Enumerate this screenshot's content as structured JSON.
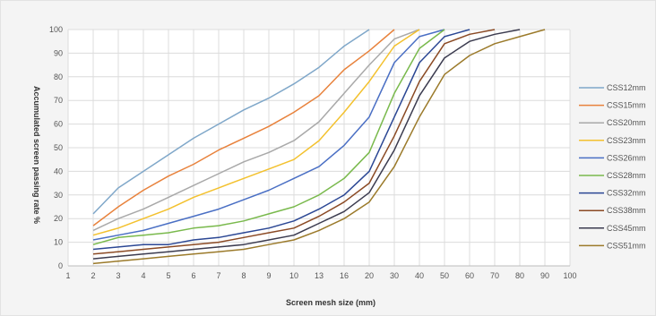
{
  "chart_data": {
    "type": "line",
    "title": "",
    "xlabel": "Screen mesh size (mm)",
    "ylabel": "Accumulated screen passing rate %",
    "x_ticks": [
      1,
      2,
      3,
      4,
      5,
      6,
      7,
      8,
      9,
      10,
      13,
      16,
      20,
      30,
      40,
      50,
      60,
      70,
      80,
      90,
      100
    ],
    "y_ticks": [
      0,
      10,
      20,
      30,
      40,
      50,
      60,
      70,
      80,
      90,
      100
    ],
    "ylim": [
      0,
      100
    ],
    "grid": true,
    "legend_position": "right",
    "series": [
      {
        "name": "CSS12mm",
        "color": "#7fa7c9",
        "points": [
          [
            2,
            22
          ],
          [
            3,
            33
          ],
          [
            4,
            40
          ],
          [
            5,
            47
          ],
          [
            6,
            54
          ],
          [
            7,
            60
          ],
          [
            8,
            66
          ],
          [
            9,
            71
          ],
          [
            10,
            77
          ],
          [
            13,
            84
          ],
          [
            16,
            93
          ],
          [
            20,
            100
          ]
        ]
      },
      {
        "name": "CSS15mm",
        "color": "#e8823c",
        "points": [
          [
            2,
            17
          ],
          [
            3,
            25
          ],
          [
            4,
            32
          ],
          [
            5,
            38
          ],
          [
            6,
            43
          ],
          [
            7,
            49
          ],
          [
            8,
            54
          ],
          [
            9,
            59
          ],
          [
            10,
            65
          ],
          [
            13,
            72
          ],
          [
            16,
            83
          ],
          [
            20,
            91
          ],
          [
            30,
            100
          ]
        ]
      },
      {
        "name": "CSS20mm",
        "color": "#a9a9a9",
        "points": [
          [
            2,
            15
          ],
          [
            3,
            20
          ],
          [
            4,
            24
          ],
          [
            5,
            29
          ],
          [
            6,
            34
          ],
          [
            7,
            39
          ],
          [
            8,
            44
          ],
          [
            9,
            48
          ],
          [
            10,
            53
          ],
          [
            13,
            61
          ],
          [
            16,
            73
          ],
          [
            20,
            85
          ],
          [
            30,
            96
          ],
          [
            40,
            100
          ]
        ]
      },
      {
        "name": "CSS23mm",
        "color": "#f3c12e",
        "points": [
          [
            2,
            13
          ],
          [
            3,
            16
          ],
          [
            4,
            20
          ],
          [
            5,
            24
          ],
          [
            6,
            29
          ],
          [
            7,
            33
          ],
          [
            8,
            37
          ],
          [
            9,
            41
          ],
          [
            10,
            45
          ],
          [
            13,
            53
          ],
          [
            16,
            65
          ],
          [
            20,
            78
          ],
          [
            30,
            93
          ],
          [
            40,
            100
          ]
        ]
      },
      {
        "name": "CSS26mm",
        "color": "#4a6fc4",
        "points": [
          [
            2,
            11
          ],
          [
            3,
            13
          ],
          [
            4,
            15
          ],
          [
            5,
            18
          ],
          [
            6,
            21
          ],
          [
            7,
            24
          ],
          [
            8,
            28
          ],
          [
            9,
            32
          ],
          [
            10,
            37
          ],
          [
            13,
            42
          ],
          [
            16,
            51
          ],
          [
            20,
            63
          ],
          [
            30,
            86
          ],
          [
            40,
            97
          ],
          [
            50,
            100
          ]
        ]
      },
      {
        "name": "CSS28mm",
        "color": "#79b94c",
        "points": [
          [
            2,
            9
          ],
          [
            3,
            12
          ],
          [
            4,
            13
          ],
          [
            5,
            14
          ],
          [
            6,
            16
          ],
          [
            7,
            17
          ],
          [
            8,
            19
          ],
          [
            9,
            22
          ],
          [
            10,
            25
          ],
          [
            13,
            30
          ],
          [
            16,
            37
          ],
          [
            20,
            48
          ],
          [
            30,
            73
          ],
          [
            40,
            92
          ],
          [
            50,
            100
          ]
        ]
      },
      {
        "name": "CSS32mm",
        "color": "#2b4794",
        "points": [
          [
            2,
            7
          ],
          [
            3,
            8
          ],
          [
            4,
            9
          ],
          [
            5,
            9
          ],
          [
            6,
            11
          ],
          [
            7,
            12
          ],
          [
            8,
            14
          ],
          [
            9,
            16
          ],
          [
            10,
            19
          ],
          [
            13,
            24
          ],
          [
            16,
            30
          ],
          [
            20,
            40
          ],
          [
            30,
            63
          ],
          [
            40,
            86
          ],
          [
            50,
            97
          ],
          [
            60,
            100
          ]
        ]
      },
      {
        "name": "CSS38mm",
        "color": "#8b4a24",
        "points": [
          [
            2,
            5
          ],
          [
            3,
            6
          ],
          [
            4,
            7
          ],
          [
            5,
            8
          ],
          [
            6,
            9
          ],
          [
            7,
            10
          ],
          [
            8,
            12
          ],
          [
            9,
            14
          ],
          [
            10,
            16
          ],
          [
            13,
            21
          ],
          [
            16,
            27
          ],
          [
            20,
            35
          ],
          [
            30,
            55
          ],
          [
            40,
            78
          ],
          [
            50,
            94
          ],
          [
            60,
            98
          ],
          [
            70,
            100
          ]
        ]
      },
      {
        "name": "CSS45mm",
        "color": "#3b3b4f",
        "points": [
          [
            2,
            3
          ],
          [
            3,
            4
          ],
          [
            4,
            5
          ],
          [
            5,
            6
          ],
          [
            6,
            7
          ],
          [
            7,
            8
          ],
          [
            8,
            9
          ],
          [
            9,
            11
          ],
          [
            10,
            13
          ],
          [
            13,
            18
          ],
          [
            16,
            23
          ],
          [
            20,
            31
          ],
          [
            30,
            49
          ],
          [
            40,
            72
          ],
          [
            50,
            88
          ],
          [
            60,
            95
          ],
          [
            70,
            98
          ],
          [
            80,
            100
          ]
        ]
      },
      {
        "name": "CSS51mm",
        "color": "#9b7a2a",
        "points": [
          [
            2,
            1
          ],
          [
            3,
            2
          ],
          [
            4,
            3
          ],
          [
            5,
            4
          ],
          [
            6,
            5
          ],
          [
            7,
            6
          ],
          [
            8,
            7
          ],
          [
            9,
            9
          ],
          [
            10,
            11
          ],
          [
            13,
            15
          ],
          [
            16,
            20
          ],
          [
            20,
            27
          ],
          [
            30,
            42
          ],
          [
            40,
            63
          ],
          [
            50,
            81
          ],
          [
            60,
            89
          ],
          [
            70,
            94
          ],
          [
            80,
            97
          ],
          [
            90,
            100
          ]
        ]
      }
    ]
  }
}
